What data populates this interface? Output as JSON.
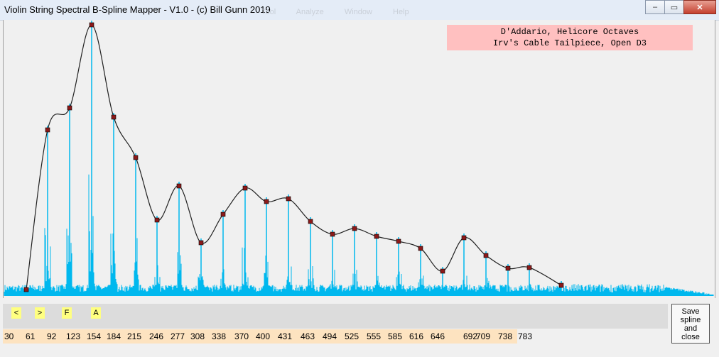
{
  "window": {
    "title": "Violin String Spectral B-Spline Mapper - V1.0 -  (c) Bill Gunn 2019",
    "ghost_menu": [
      "Tool",
      "Analyze",
      "Window",
      "Help"
    ],
    "buttons": {
      "minimize": "–",
      "maximize": "▭",
      "close": "✕"
    }
  },
  "info": {
    "line1": "D'Addario, Helicore Octaves",
    "line2": "Irv's Cable Tailpiece, Open D3"
  },
  "tools": {
    "prev": "<",
    "next": ">",
    "f": "F",
    "a": "A"
  },
  "save_button": {
    "line1": "Save",
    "line2": "spline",
    "line3": "and",
    "line4": "close"
  },
  "axis_labels": [
    "30",
    "61",
    "92",
    "123",
    "154",
    "184",
    "215",
    "246",
    "277",
    "308",
    "338",
    "370",
    "400",
    "431",
    "463",
    "494",
    "525",
    "555",
    "585",
    "616",
    "646",
    "692",
    "709",
    "738",
    "783"
  ],
  "colors": {
    "spectrum": "#00b8ee",
    "spline": "#202020",
    "knot_fill": "#8b1a1a",
    "info_bg": "#ffc0c0",
    "tool_bg": "#ffff80",
    "axis_bg": "#fde3c0"
  }
}
